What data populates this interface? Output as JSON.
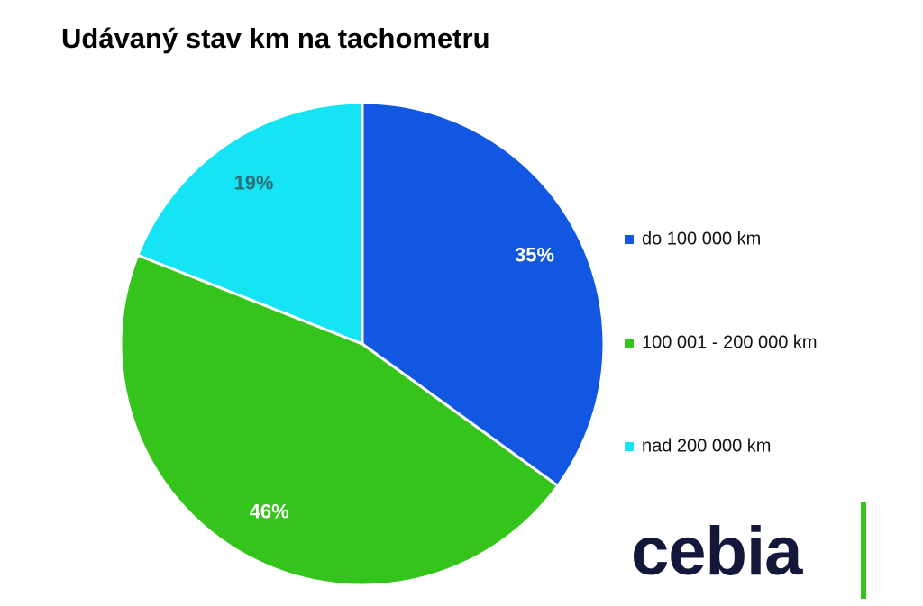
{
  "chart_data": {
    "type": "pie",
    "title": "Udávaný stav km na tachometru",
    "categories": [
      "do 100 000 km",
      "100 001 - 200 000 km",
      "nad 200 000 km"
    ],
    "values": [
      35,
      46,
      19
    ],
    "value_labels": [
      "35%",
      "46%",
      "19%"
    ],
    "colors": [
      "#1157e2",
      "#34c41b",
      "#14e4f4"
    ],
    "label_colors": [
      "#ffffff",
      "#ffffff",
      "#2c6f78"
    ],
    "legend": "right"
  },
  "logo": "cebia"
}
